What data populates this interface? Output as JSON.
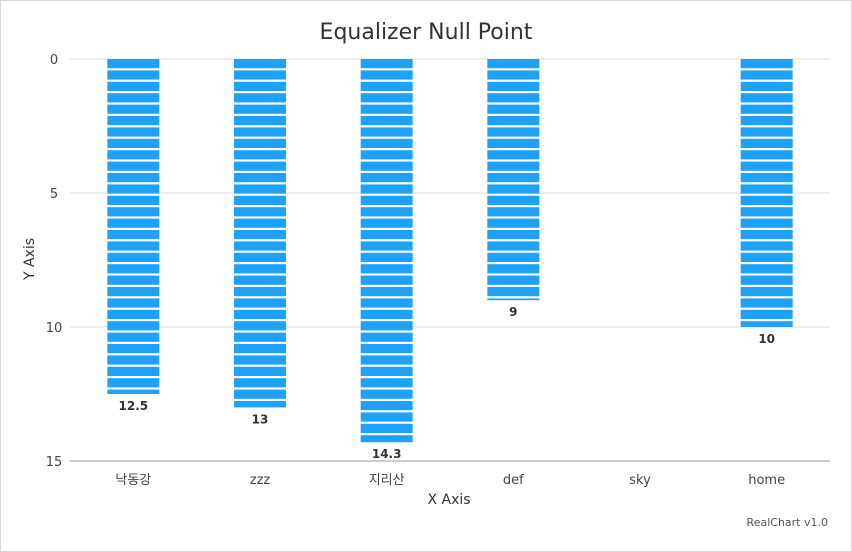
{
  "chart_data": {
    "type": "bar",
    "title": "Equalizer Null Point",
    "xlabel": "X Axis",
    "ylabel": "Y Axis",
    "categories": [
      "낙동강",
      "zzz",
      "지리산",
      "def",
      "sky",
      "home"
    ],
    "values": [
      12.5,
      13,
      14.3,
      9,
      null,
      10
    ],
    "data_labels": [
      "12.5",
      "13",
      "14.3",
      "9",
      "",
      "10"
    ],
    "ylim": [
      0,
      15
    ],
    "y_reversed": true,
    "y_ticks": [
      0,
      5,
      10,
      15
    ],
    "y_tick_labels": [
      "0",
      "5",
      "10",
      "15"
    ],
    "grid": true,
    "style": "equalizer",
    "bar_color": "#1ea1f7",
    "grid_color": "#dddddd",
    "axis_color": "#999999"
  },
  "credits": "RealChart v1.0"
}
